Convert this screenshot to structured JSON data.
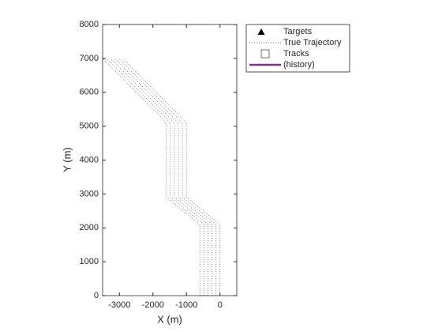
{
  "chart_data": {
    "type": "line",
    "xlabel": "X (m)",
    "ylabel": "Y (m)",
    "xlim": [
      -3500,
      500
    ],
    "ylim": [
      0,
      8000
    ],
    "xticks": [
      -3000,
      -2000,
      -1000,
      0
    ],
    "yticks": [
      0,
      1000,
      2000,
      3000,
      4000,
      5000,
      6000,
      7000,
      8000
    ],
    "color": "#6e6e6e",
    "series": [
      {
        "x": [
          0,
          0,
          -1000,
          -1000,
          -2900
        ],
        "values": [
          0,
          2100,
          2900,
          5100,
          7000
        ]
      },
      {
        "x": [
          -120,
          -120,
          -1120,
          -1120,
          -3020
        ],
        "values": [
          0,
          2100,
          2900,
          5100,
          7000
        ]
      },
      {
        "x": [
          -240,
          -240,
          -1240,
          -1240,
          -3140
        ],
        "values": [
          0,
          2100,
          2900,
          5100,
          7000
        ]
      },
      {
        "x": [
          -360,
          -360,
          -1360,
          -1360,
          -3260
        ],
        "values": [
          0,
          2100,
          2900,
          5100,
          7000
        ]
      },
      {
        "x": [
          -480,
          -480,
          -1480,
          -1480,
          -3380
        ],
        "values": [
          0,
          2100,
          2900,
          5100,
          7000
        ]
      },
      {
        "x": [
          -600,
          -600,
          -1600,
          -1600,
          -3500
        ],
        "values": [
          0,
          2100,
          2900,
          5100,
          7000
        ]
      }
    ],
    "legend": [
      {
        "label": "Targets",
        "color": "#000000"
      },
      {
        "label": "True Trajectory",
        "color": "#6e6e6e"
      },
      {
        "label": "Tracks",
        "color": "#6e6e6e"
      },
      {
        "label": "(history)",
        "color": "#7e2f8e"
      }
    ]
  }
}
